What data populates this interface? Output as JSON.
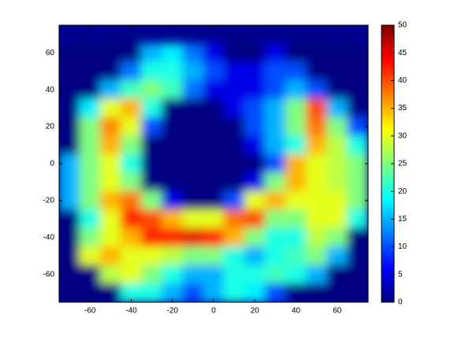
{
  "chart_data": {
    "type": "heatmap",
    "colormap": "jet",
    "x": [
      -70,
      -60,
      -50,
      -40,
      -30,
      -20,
      -10,
      0,
      10,
      20,
      30,
      40,
      50,
      60,
      70
    ],
    "y": [
      60,
      50,
      40,
      30,
      20,
      10,
      0,
      -10,
      -20,
      -30,
      -40,
      -50,
      -60,
      -70
    ],
    "z": [
      [
        0,
        0,
        0,
        0,
        15,
        18,
        12,
        5,
        0,
        0,
        5,
        0,
        0,
        0,
        0
      ],
      [
        0,
        0,
        0,
        12,
        20,
        20,
        15,
        10,
        5,
        5,
        10,
        10,
        0,
        0,
        0
      ],
      [
        0,
        0,
        15,
        22,
        25,
        22,
        12,
        5,
        5,
        5,
        10,
        15,
        10,
        0,
        0
      ],
      [
        0,
        18,
        30,
        35,
        20,
        0,
        0,
        0,
        5,
        10,
        15,
        25,
        40,
        15,
        0
      ],
      [
        0,
        25,
        37,
        30,
        10,
        0,
        0,
        0,
        0,
        10,
        15,
        25,
        38,
        25,
        10
      ],
      [
        0,
        25,
        35,
        25,
        0,
        0,
        0,
        0,
        0,
        5,
        15,
        20,
        35,
        28,
        20
      ],
      [
        15,
        25,
        30,
        20,
        0,
        0,
        0,
        0,
        0,
        0,
        10,
        35,
        30,
        28,
        25
      ],
      [
        15,
        25,
        30,
        25,
        0,
        0,
        0,
        0,
        0,
        5,
        25,
        35,
        30,
        28,
        25
      ],
      [
        15,
        25,
        35,
        38,
        25,
        5,
        0,
        0,
        10,
        30,
        35,
        30,
        30,
        30,
        25
      ],
      [
        0,
        20,
        30,
        42,
        40,
        35,
        30,
        30,
        38,
        40,
        25,
        25,
        30,
        30,
        20
      ],
      [
        0,
        25,
        30,
        35,
        42,
        42,
        45,
        42,
        35,
        25,
        20,
        20,
        28,
        25,
        0
      ],
      [
        0,
        30,
        35,
        30,
        30,
        28,
        25,
        25,
        20,
        15,
        20,
        22,
        25,
        15,
        0
      ],
      [
        0,
        0,
        28,
        30,
        25,
        20,
        15,
        15,
        20,
        20,
        22,
        20,
        15,
        0,
        0
      ],
      [
        0,
        0,
        0,
        20,
        20,
        15,
        10,
        15,
        20,
        18,
        10,
        0,
        0,
        0,
        0
      ]
    ],
    "xlim": [
      -75,
      75
    ],
    "ylim": [
      -75,
      75
    ],
    "xticks": [
      -60,
      -40,
      -20,
      0,
      20,
      40,
      60
    ],
    "yticks": [
      -60,
      -40,
      -20,
      0,
      20,
      40,
      60
    ],
    "clim": [
      0,
      50
    ],
    "cticks": [
      0,
      5,
      10,
      15,
      20,
      25,
      30,
      35,
      40,
      45,
      50
    ]
  }
}
